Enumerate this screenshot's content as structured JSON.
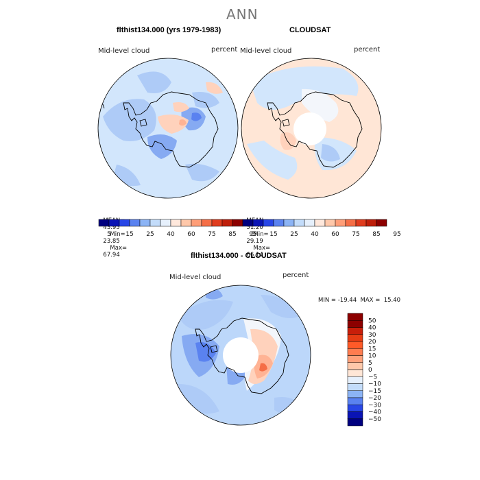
{
  "page": {
    "title": "ANN"
  },
  "panels": [
    {
      "title": "flthist134.000 (yrs 1979-1983)",
      "left_label": "Mid-level cloud",
      "right_label": "percent",
      "stats": {
        "mean_label": "MEAN=",
        "mean": "43.95",
        "min_label": "Min=",
        "min": "23.85",
        "max_label": "Max=",
        "max": "67.94"
      }
    },
    {
      "title": "CLOUDSAT",
      "left_label": "Mid-level cloud",
      "right_label": "percent",
      "stats": {
        "mean_label": "MEAN=",
        "mean": "51.20",
        "min_label": "Min=",
        "min": "29.19",
        "max_label": "Max=",
        "max": "66.14"
      }
    },
    {
      "title": "flthist134.000 - CLOUDSAT",
      "left_label": "Mid-level cloud",
      "right_label": "percent",
      "range_text": "MIN = -19.44  MAX =  15.40"
    }
  ],
  "colorbar_abs": {
    "labels": [
      "5",
      "15",
      "25",
      "40",
      "60",
      "75",
      "85",
      "95"
    ],
    "colors": [
      "#00007f",
      "#0a14b4",
      "#2846e6",
      "#5a82f0",
      "#8cb4f5",
      "#c3dcfa",
      "#e6f0fc",
      "#ffe8dc",
      "#ffc8aa",
      "#ff9e78",
      "#f56e46",
      "#e03c1e",
      "#be1e0a",
      "#8c0000"
    ]
  },
  "colorbar_diff": {
    "labels": [
      "50",
      "40",
      "30",
      "20",
      "15",
      "10",
      "5",
      "0",
      "−5",
      "−10",
      "−15",
      "−20",
      "−30",
      "−40",
      "−50"
    ],
    "colors": [
      "#8c0000",
      "#c81e0a",
      "#e63c14",
      "#ff5a28",
      "#ff7c50",
      "#ffa07a",
      "#ffc8aa",
      "#ffe6d6",
      "#e6f0fc",
      "#c3dcfa",
      "#8cb4f5",
      "#5a82f0",
      "#2846e6",
      "#0a14b4",
      "#00007f"
    ]
  },
  "map_colors": {
    "base1": "#d2e6fc",
    "base2": "#ffe6d6",
    "base3": "#bcd7fa",
    "light_blue": "#aecbf7",
    "mid_blue": "#86aaf2",
    "deep_blue": "#5a82f0",
    "peach": "#ffd2bc",
    "salmon": "#ffb394",
    "red": "#f56e46",
    "pale": "#f3f6fb",
    "coast": "#000000",
    "hole": "#ffffff"
  }
}
